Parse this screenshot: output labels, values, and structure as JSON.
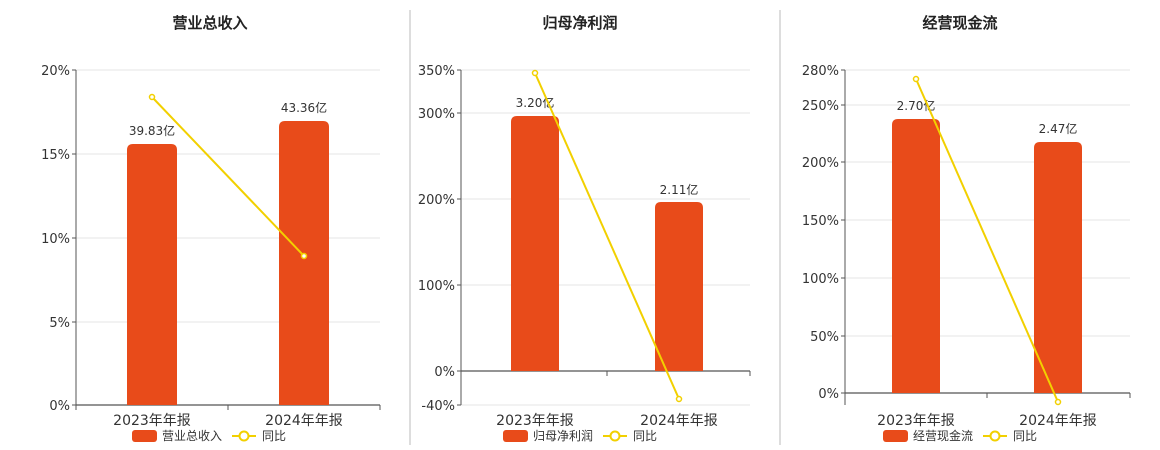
{
  "colors": {
    "bar": "#E84B1A",
    "line": "#F2D000",
    "grid": "#E6E6E6",
    "axis": "#555555",
    "divider": "#BBBBBB"
  },
  "chart_data": [
    {
      "type": "bar",
      "title": "营业总收入",
      "categories": [
        "2023年年报",
        "2024年年报"
      ],
      "bar_labels": [
        "39.83亿",
        "43.36亿"
      ],
      "series": [
        {
          "name": "营业总收入",
          "type": "bar",
          "axis": "amount",
          "values": [
            39.83,
            43.36
          ]
        },
        {
          "name": "同比",
          "type": "line",
          "axis": "percent",
          "values": [
            18.4,
            8.9
          ]
        }
      ],
      "y_ticks": [
        "20%",
        "15%",
        "10%",
        "5%",
        "0%"
      ],
      "ylim": [
        0,
        20
      ],
      "grid": true,
      "legend": "bottom"
    },
    {
      "type": "bar",
      "title": "归母净利润",
      "categories": [
        "2023年年报",
        "2024年年报"
      ],
      "bar_labels": [
        "3.20亿",
        "2.11亿"
      ],
      "series": [
        {
          "name": "归母净利润",
          "type": "bar",
          "axis": "amount",
          "values": [
            3.2,
            2.11
          ]
        },
        {
          "name": "同比",
          "type": "line",
          "axis": "percent",
          "values": [
            346,
            -34
          ]
        }
      ],
      "y_ticks": [
        "350%",
        "300%",
        "200%",
        "100%",
        "0%",
        "-40%"
      ],
      "ylim": [
        -40,
        350
      ],
      "grid": true,
      "legend": "bottom"
    },
    {
      "type": "bar",
      "title": "经营现金流",
      "categories": [
        "2023年年报",
        "2024年年报"
      ],
      "bar_labels": [
        "2.70亿",
        "2.47亿"
      ],
      "series": [
        {
          "name": "经营现金流",
          "type": "bar",
          "axis": "amount",
          "values": [
            2.7,
            2.47
          ]
        },
        {
          "name": "同比",
          "type": "line",
          "axis": "percent",
          "values": [
            273,
            -8
          ]
        }
      ],
      "y_ticks": [
        "280%",
        "250%",
        "200%",
        "150%",
        "100%",
        "50%",
        "0%"
      ],
      "ylim": [
        -10,
        280
      ],
      "grid": true,
      "legend": "bottom"
    }
  ]
}
